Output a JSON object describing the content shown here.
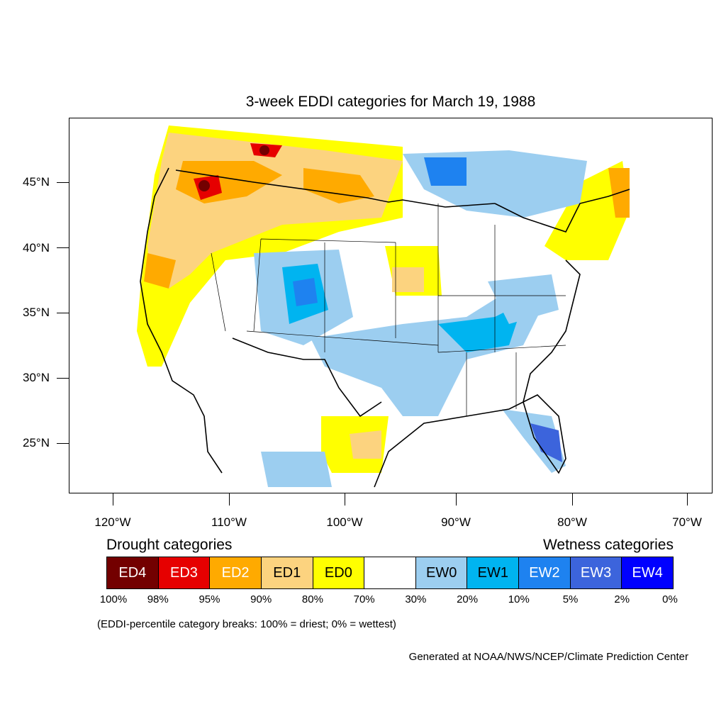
{
  "title": "3-week EDDI categories for March 19, 1988",
  "axes": {
    "y_ticks": [
      "45°N",
      "40°N",
      "35°N",
      "30°N",
      "25°N"
    ],
    "x_ticks": [
      "120°W",
      "110°W",
      "100°W",
      "90°W",
      "80°W",
      "70°W"
    ]
  },
  "legend": {
    "drought_heading": "Drought categories",
    "wetness_heading": "Wetness categories",
    "categories": [
      {
        "label": "ED4",
        "color": "#730000",
        "text_color": "#ffffff"
      },
      {
        "label": "ED3",
        "color": "#e60000",
        "text_color": "#ffffff"
      },
      {
        "label": "ED2",
        "color": "#ffaa00",
        "text_color": "#ffffff"
      },
      {
        "label": "ED1",
        "color": "#fcd37f",
        "text_color": "#000000"
      },
      {
        "label": "ED0",
        "color": "#ffff00",
        "text_color": "#000000"
      },
      {
        "label": "",
        "color": "#ffffff",
        "text_color": "#000000"
      },
      {
        "label": "EW0",
        "color": "#9ccef0",
        "text_color": "#000000"
      },
      {
        "label": "EW1",
        "color": "#00b4f0",
        "text_color": "#000000"
      },
      {
        "label": "EW2",
        "color": "#1e82f0",
        "text_color": "#ffffff"
      },
      {
        "label": "EW3",
        "color": "#3c64dc",
        "text_color": "#ffffff"
      },
      {
        "label": "EW4",
        "color": "#0000ff",
        "text_color": "#ffffff"
      }
    ],
    "breaks": [
      "100%",
      "98%",
      "95%",
      "90%",
      "80%",
      "70%",
      "30%",
      "20%",
      "10%",
      "5%",
      "2%",
      "0%"
    ]
  },
  "note": "(EDDI-percentile category breaks: 100% = driest; 0% = wettest)",
  "credit": "Generated at NOAA/NWS/NCEP/Climate Prediction Center"
}
